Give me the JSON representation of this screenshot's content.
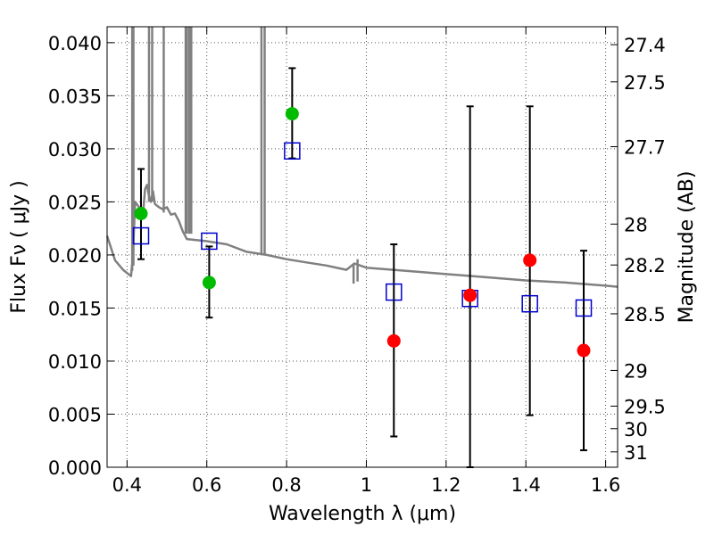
{
  "chart_data": {
    "type": "scatter",
    "xlabel": "Wavelength  λ (μm)",
    "ylabel": "Flux  Fν  ( μJy )",
    "y2label": "Magnitude (AB)",
    "xlim": [
      0.35,
      1.63
    ],
    "ylim": [
      0.0,
      0.0415
    ],
    "grid": true,
    "xticks": [
      {
        "v": 0.4,
        "label": "0.4"
      },
      {
        "v": 0.6,
        "label": "0.6"
      },
      {
        "v": 0.8,
        "label": "0.8"
      },
      {
        "v": 1.0,
        "label": "1"
      },
      {
        "v": 1.2,
        "label": "1.2"
      },
      {
        "v": 1.4,
        "label": "1.4"
      },
      {
        "v": 1.6,
        "label": "1.6"
      }
    ],
    "yticks": [
      {
        "v": 0.0,
        "label": "0.000"
      },
      {
        "v": 0.005,
        "label": "0.005"
      },
      {
        "v": 0.01,
        "label": "0.010"
      },
      {
        "v": 0.015,
        "label": "0.015"
      },
      {
        "v": 0.02,
        "label": "0.020"
      },
      {
        "v": 0.025,
        "label": "0.025"
      },
      {
        "v": 0.03,
        "label": "0.030"
      },
      {
        "v": 0.035,
        "label": "0.035"
      },
      {
        "v": 0.04,
        "label": "0.040"
      }
    ],
    "magticks": [
      {
        "mag": 27.4,
        "label": "27.4"
      },
      {
        "mag": 27.5,
        "label": "27.5"
      },
      {
        "mag": 27.7,
        "label": "27.7"
      },
      {
        "mag": 28.0,
        "label": "28"
      },
      {
        "mag": 28.2,
        "label": "28.2"
      },
      {
        "mag": 28.5,
        "label": "28.5"
      },
      {
        "mag": 29.0,
        "label": "29"
      },
      {
        "mag": 29.5,
        "label": "29.5"
      },
      {
        "mag": 30.0,
        "label": "30"
      },
      {
        "mag": 31.0,
        "label": "31"
      }
    ],
    "observed": {
      "color_detected": "#00bb00",
      "color_faint": "#ff0000",
      "points": [
        {
          "x": 0.435,
          "y": 0.0239,
          "err": [
            0.0196,
            0.0281
          ],
          "kind": "detected"
        },
        {
          "x": 0.606,
          "y": 0.0174,
          "err": [
            0.0141,
            0.0208
          ],
          "kind": "detected"
        },
        {
          "x": 0.814,
          "y": 0.0333,
          "err": [
            0.0291,
            0.0376
          ],
          "kind": "detected"
        },
        {
          "x": 1.069,
          "y": 0.0119,
          "err": [
            0.0029,
            0.021
          ],
          "kind": "faint"
        },
        {
          "x": 1.26,
          "y": 0.0162,
          "err": [
            0.0,
            0.034
          ],
          "kind": "faint"
        },
        {
          "x": 1.41,
          "y": 0.0195,
          "err": [
            0.0049,
            0.034
          ],
          "kind": "faint"
        },
        {
          "x": 1.545,
          "y": 0.011,
          "err": [
            0.0016,
            0.0204
          ],
          "kind": "faint"
        }
      ]
    },
    "model_photometry": {
      "color": "#0000cc",
      "points": [
        {
          "x": 0.435,
          "y": 0.0218
        },
        {
          "x": 0.606,
          "y": 0.0213
        },
        {
          "x": 0.814,
          "y": 0.0298
        },
        {
          "x": 1.069,
          "y": 0.0165
        },
        {
          "x": 1.26,
          "y": 0.0159
        },
        {
          "x": 1.41,
          "y": 0.0154
        },
        {
          "x": 1.545,
          "y": 0.015
        }
      ]
    },
    "model_spectrum": {
      "color": "#808080",
      "x": [
        0.35,
        0.37,
        0.39,
        0.41,
        0.415,
        0.418,
        0.42,
        0.43,
        0.44,
        0.445,
        0.45,
        0.455,
        0.46,
        0.465,
        0.47,
        0.48,
        0.49,
        0.5,
        0.51,
        0.52,
        0.53,
        0.54,
        0.55,
        0.6,
        0.65,
        0.7,
        0.75,
        0.8,
        0.85,
        0.9,
        0.95,
        0.97,
        1.0,
        1.1,
        1.2,
        1.3,
        1.4,
        1.5,
        1.6,
        1.63
      ],
      "y": [
        0.0218,
        0.0195,
        0.0186,
        0.018,
        0.02,
        0.023,
        0.025,
        0.0245,
        0.0238,
        0.0262,
        0.0266,
        0.0256,
        0.025,
        0.026,
        0.0248,
        0.0245,
        0.0243,
        0.0245,
        0.0238,
        0.0239,
        0.0232,
        0.0222,
        0.0215,
        0.0213,
        0.021,
        0.0203,
        0.02,
        0.0196,
        0.0193,
        0.019,
        0.0186,
        0.0192,
        0.0188,
        0.0185,
        0.0182,
        0.0179,
        0.0176,
        0.0174,
        0.0171,
        0.017
      ],
      "spikes": [
        {
          "x": 0.413,
          "y0": 0.0185,
          "y1": 0.0415
        },
        {
          "x": 0.416,
          "y0": 0.019,
          "y1": 0.0415
        },
        {
          "x": 0.455,
          "y0": 0.025,
          "y1": 0.0415
        },
        {
          "x": 0.463,
          "y0": 0.025,
          "y1": 0.0415
        },
        {
          "x": 0.492,
          "y0": 0.024,
          "y1": 0.0415
        },
        {
          "x": 0.547,
          "y0": 0.022,
          "y1": 0.0415
        },
        {
          "x": 0.55,
          "y0": 0.022,
          "y1": 0.0415
        },
        {
          "x": 0.556,
          "y0": 0.022,
          "y1": 0.0415
        },
        {
          "x": 0.561,
          "y0": 0.022,
          "y1": 0.0415
        },
        {
          "x": 0.737,
          "y0": 0.02,
          "y1": 0.0415
        },
        {
          "x": 0.745,
          "y0": 0.02,
          "y1": 0.0415
        },
        {
          "x": 0.968,
          "y0": 0.0173,
          "y1": 0.0192
        },
        {
          "x": 0.978,
          "y0": 0.0175,
          "y1": 0.0196
        }
      ]
    }
  }
}
